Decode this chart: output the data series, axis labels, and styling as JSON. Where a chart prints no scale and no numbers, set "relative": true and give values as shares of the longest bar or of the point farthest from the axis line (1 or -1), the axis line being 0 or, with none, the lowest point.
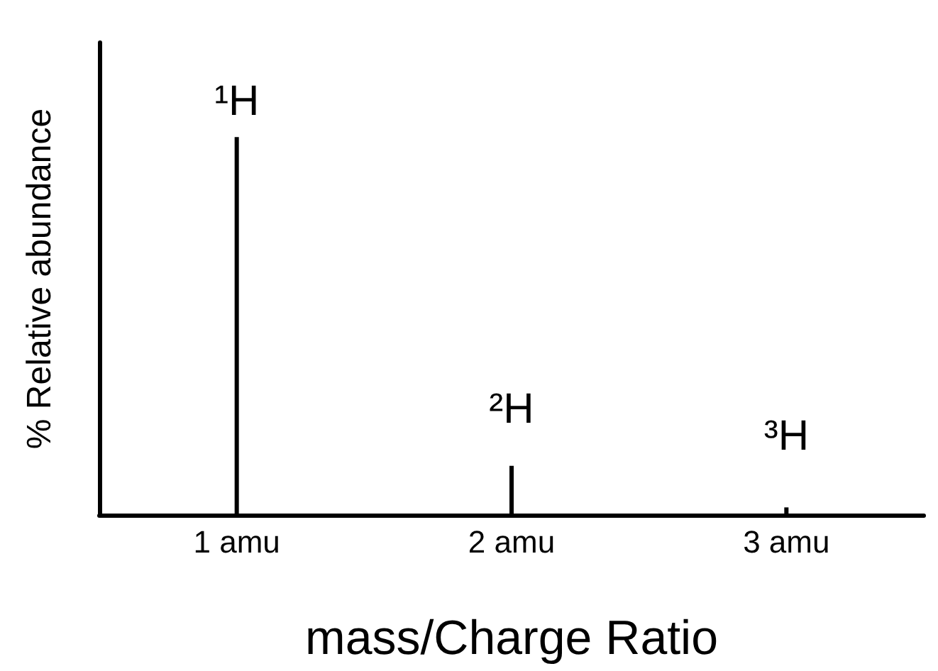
{
  "chart_data": {
    "type": "bar",
    "relative": true,
    "xlabel": "mass/Charge Ratio",
    "ylabel": "% Relative abundance",
    "categories": [
      "1 amu",
      "2 amu",
      "3 amu"
    ],
    "values": [
      1,
      0.13,
      0.02
    ],
    "color": "#000000",
    "annotations": [
      {
        "text": "¹H",
        "x": "1 amu",
        "y": 1
      },
      {
        "text": "²H",
        "x": "2 amu",
        "y": 0.13
      },
      {
        "text": "³H",
        "x": "3 amu",
        "y": 0.02
      }
    ]
  }
}
